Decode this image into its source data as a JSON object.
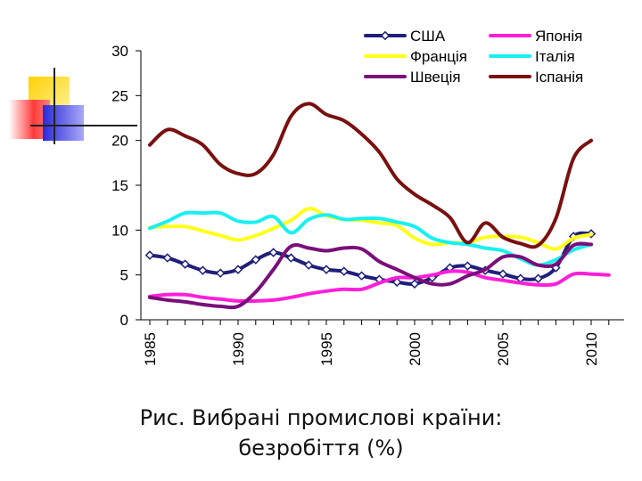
{
  "caption": {
    "line1": "Рис. Вибрані промислові країни:",
    "line2": "безробіття (%)"
  },
  "decoration": {
    "name": "slide-corner-squares",
    "colors": {
      "yellow": "#FFD100",
      "red": "#FF3B3B",
      "blue": "#3A3AE0",
      "line": "#222222"
    }
  },
  "chart_data": {
    "type": "line",
    "xlim": [
      1985,
      2011.5
    ],
    "ylim": [
      0,
      30
    ],
    "yticks": [
      0,
      5,
      10,
      15,
      20,
      25,
      30
    ],
    "xticks": [
      1985,
      1990,
      1995,
      2000,
      2005,
      2010
    ],
    "grid": false,
    "legend_position": "top",
    "series": [
      {
        "name": "США",
        "color": "#1F1F7A",
        "markers": true,
        "x": [
          1985,
          1986,
          1987,
          1988,
          1989,
          1990,
          1991,
          1992,
          1993,
          1994,
          1995,
          1996,
          1997,
          1998,
          1999,
          2000,
          2001,
          2002,
          2003,
          2004,
          2005,
          2006,
          2007,
          2008,
          2009,
          2010
        ],
        "y": [
          7.2,
          6.9,
          6.2,
          5.5,
          5.2,
          5.6,
          6.7,
          7.5,
          6.9,
          6.1,
          5.6,
          5.4,
          4.9,
          4.5,
          4.2,
          4.0,
          4.7,
          5.8,
          6.0,
          5.5,
          5.1,
          4.6,
          4.6,
          5.8,
          9.3,
          9.6
        ]
      },
      {
        "name": "Японія",
        "color": "#FF1FD8",
        "markers": false,
        "x": [
          1985,
          1986,
          1987,
          1988,
          1989,
          1990,
          1991,
          1992,
          1993,
          1994,
          1995,
          1996,
          1997,
          1998,
          1999,
          2000,
          2001,
          2002,
          2003,
          2004,
          2005,
          2006,
          2007,
          2008,
          2009,
          2010,
          2011
        ],
        "y": [
          2.6,
          2.8,
          2.8,
          2.5,
          2.3,
          2.1,
          2.1,
          2.2,
          2.5,
          2.9,
          3.2,
          3.4,
          3.4,
          4.1,
          4.7,
          4.7,
          5.0,
          5.4,
          5.3,
          4.7,
          4.4,
          4.1,
          3.9,
          4.0,
          5.1,
          5.1,
          5.0
        ]
      },
      {
        "name": "Франція",
        "color": "#FFFF1A",
        "markers": false,
        "x": [
          1985,
          1986,
          1987,
          1988,
          1989,
          1990,
          1991,
          1992,
          1993,
          1994,
          1995,
          1996,
          1997,
          1998,
          1999,
          2000,
          2001,
          2002,
          2003,
          2004,
          2005,
          2006,
          2007,
          2008,
          2009,
          2010
        ],
        "y": [
          10.3,
          10.4,
          10.4,
          9.9,
          9.4,
          8.9,
          9.4,
          10.2,
          11.1,
          12.4,
          11.6,
          11.2,
          11.1,
          10.8,
          10.5,
          9.1,
          8.4,
          8.6,
          8.6,
          9.2,
          9.3,
          9.2,
          8.6,
          7.9,
          9.1,
          9.5
        ]
      },
      {
        "name": "Італія",
        "color": "#19F0F0",
        "markers": false,
        "x": [
          1985,
          1986,
          1987,
          1988,
          1989,
          1990,
          1991,
          1992,
          1993,
          1994,
          1995,
          1996,
          1997,
          1998,
          1999,
          2000,
          2001,
          2002,
          2003,
          2004,
          2005,
          2006,
          2007,
          2008,
          2009,
          2010
        ],
        "y": [
          10.2,
          11.0,
          11.9,
          11.9,
          11.9,
          11.0,
          10.9,
          11.5,
          9.7,
          11.2,
          11.7,
          11.2,
          11.3,
          11.3,
          10.9,
          10.4,
          9.1,
          8.6,
          8.4,
          8.0,
          7.7,
          6.8,
          6.1,
          6.7,
          7.8,
          8.4
        ]
      },
      {
        "name": "Швеція",
        "color": "#7A0F7A",
        "markers": false,
        "x": [
          1985,
          1986,
          1987,
          1988,
          1989,
          1990,
          1991,
          1992,
          1993,
          1994,
          1995,
          1996,
          1997,
          1998,
          1999,
          2000,
          2001,
          2002,
          2003,
          2004,
          2005,
          2006,
          2007,
          2008,
          2009,
          2010
        ],
        "y": [
          2.5,
          2.2,
          2.0,
          1.7,
          1.5,
          1.5,
          3.1,
          5.6,
          8.2,
          8.0,
          7.7,
          8.0,
          7.9,
          6.5,
          5.6,
          4.7,
          4.0,
          4.0,
          4.9,
          5.6,
          7.0,
          7.0,
          6.1,
          6.2,
          8.3,
          8.4
        ]
      },
      {
        "name": "Іспанія",
        "color": "#7A1010",
        "markers": false,
        "x": [
          1985,
          1986,
          1987,
          1988,
          1989,
          1990,
          1991,
          1992,
          1993,
          1994,
          1995,
          1996,
          1997,
          1998,
          1999,
          2000,
          2001,
          2002,
          2003,
          2004,
          2005,
          2006,
          2007,
          2008,
          2009,
          2010
        ],
        "y": [
          19.5,
          21.2,
          20.5,
          19.5,
          17.3,
          16.3,
          16.3,
          18.4,
          22.7,
          24.1,
          22.9,
          22.2,
          20.7,
          18.7,
          15.7,
          14.0,
          12.8,
          11.4,
          8.6,
          10.8,
          9.2,
          8.5,
          8.3,
          11.3,
          18.0,
          20.0
        ]
      }
    ]
  }
}
